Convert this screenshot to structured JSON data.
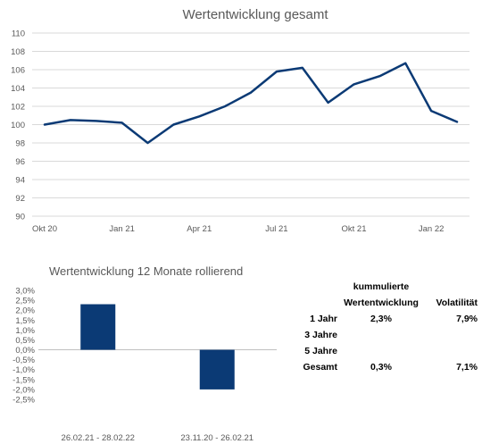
{
  "chart_data": [
    {
      "type": "line",
      "title": "Wertentwicklung gesamt",
      "xlabel": "",
      "ylabel": "",
      "ylim": [
        90,
        110
      ],
      "yticks": [
        90,
        92,
        94,
        96,
        98,
        100,
        102,
        104,
        106,
        108,
        110
      ],
      "xtick_labels": [
        "Okt 20",
        "Jan 21",
        "Apr 21",
        "Jul 21",
        "Okt 21",
        "Jan 22"
      ],
      "grid": true,
      "legend": "none",
      "line_color": "#0b3a75",
      "series": [
        {
          "x": [
            "Okt 20",
            "Nov 20",
            "Dez 20",
            "Jan 21",
            "Feb 21",
            "Mär 21",
            "Apr 21",
            "Mai 21",
            "Jun 21",
            "Jul 21",
            "Aug 21",
            "Sep 21",
            "Okt 21",
            "Nov 21",
            "Dez 21",
            "Jan 22",
            "Feb 22"
          ],
          "values": [
            100.0,
            100.5,
            100.4,
            100.2,
            98.0,
            100.0,
            100.9,
            102.0,
            103.5,
            105.8,
            106.2,
            102.4,
            104.4,
            105.3,
            106.7,
            101.5,
            100.3
          ]
        }
      ]
    },
    {
      "type": "bar",
      "title": "Wertentwicklung 12 Monate rollierend",
      "xlabel": "",
      "ylabel": "",
      "ylim": [
        -2.5,
        3.0
      ],
      "yticks": [
        3.0,
        2.5,
        2.0,
        1.5,
        1.0,
        0.5,
        0.0,
        -0.5,
        -1.0,
        -1.5,
        -2.0,
        -2.5
      ],
      "ytick_labels": [
        "3,0%",
        "2,5%",
        "2,0%",
        "1,5%",
        "1,0%",
        "0,5%",
        "0,0%",
        "-0,5%",
        "-1,0%",
        "-1,5%",
        "-2,0%",
        "-2,5%"
      ],
      "grid": false,
      "legend": "none",
      "bar_color": "#0b3a75",
      "categories": [
        "26.02.21 - 28.02.22",
        "23.11.20 - 26.02.21"
      ],
      "values": [
        2.3,
        -2.0
      ]
    }
  ],
  "stats": {
    "header_top": "kummulierte",
    "header_col1": "Wertentwicklung",
    "header_col2": "Volatilität",
    "rows": [
      {
        "label": "1 Jahr",
        "perf": "2,3%",
        "vol": "7,9%"
      },
      {
        "label": "3 Jahre",
        "perf": "",
        "vol": ""
      },
      {
        "label": "5 Jahre",
        "perf": "",
        "vol": ""
      },
      {
        "label": "Gesamt",
        "perf": "0,3%",
        "vol": "7,1%"
      }
    ]
  }
}
